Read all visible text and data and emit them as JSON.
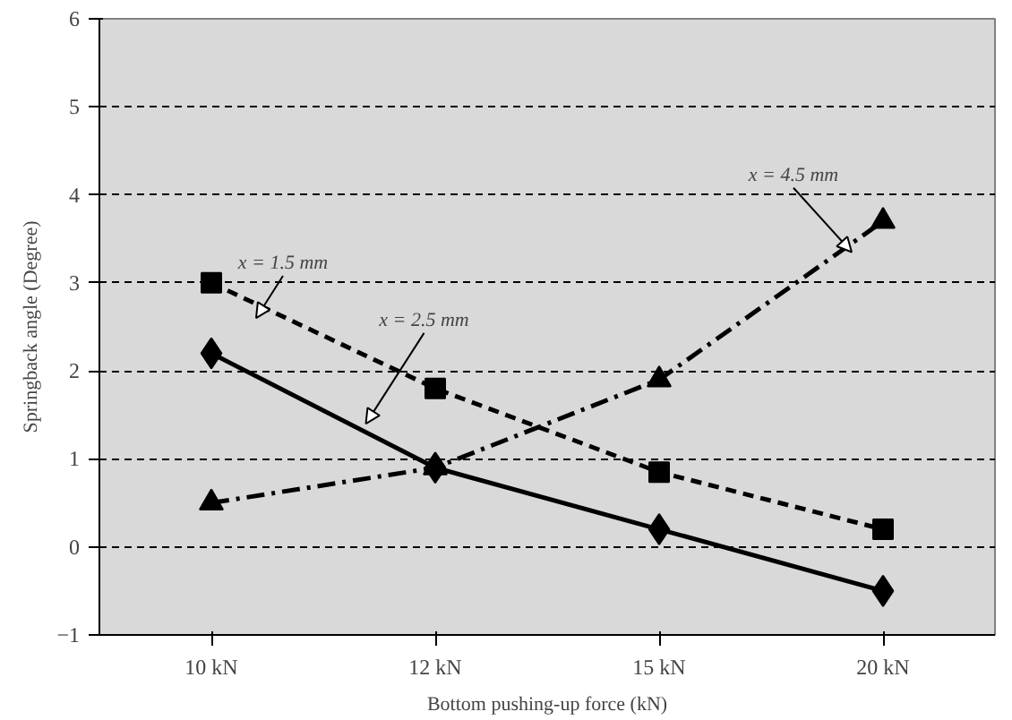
{
  "chart_data": {
    "type": "line",
    "xlabel": "Bottom pushing-up force (kN)",
    "ylabel": "Springback angle (Degree)",
    "categories": [
      "10 kN",
      "12 kN",
      "15 kN",
      "20 kN"
    ],
    "ylim": [
      -1,
      6
    ],
    "yticks": [
      -1,
      0,
      1,
      2,
      3,
      4,
      5,
      6
    ],
    "grid": "y",
    "series": [
      {
        "name": "x = 2.5 mm",
        "color": "#000000",
        "values": [
          2.2,
          0.9,
          0.2,
          -0.5
        ],
        "marker": "diamond",
        "line_style": "solid"
      },
      {
        "name": "x = 1.5 mm",
        "color": "#000000",
        "values": [
          3.0,
          1.8,
          0.85,
          0.2
        ],
        "marker": "square",
        "line_style": "dashed"
      },
      {
        "name": "x = 4.5 mm",
        "color": "#000000",
        "values": [
          0.5,
          0.9,
          1.9,
          3.7
        ],
        "marker": "triangle",
        "line_style": "dashdot"
      }
    ]
  }
}
